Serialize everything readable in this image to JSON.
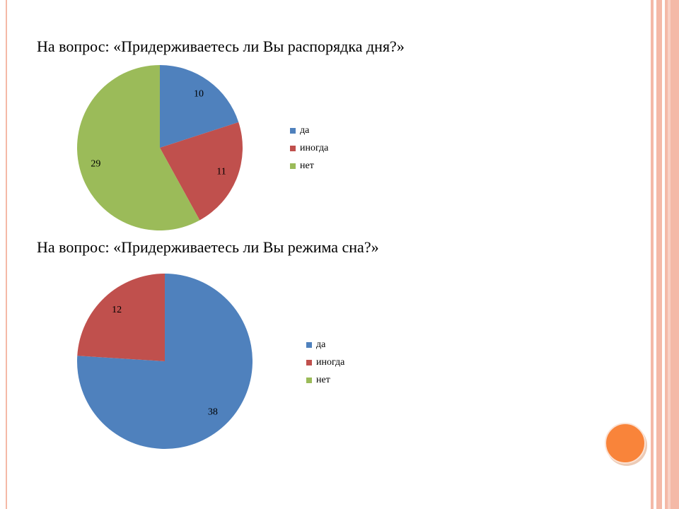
{
  "chart_data": [
    {
      "type": "pie",
      "title": "На вопрос: «Придерживаетесь ли Вы распорядка дня?»",
      "categories": [
        "да",
        "иногда",
        "нет"
      ],
      "values": [
        10,
        11,
        29
      ],
      "colors": [
        "#4f81bd",
        "#c0504d",
        "#9bbb59"
      ],
      "legend": "right"
    },
    {
      "type": "pie",
      "title": "На вопрос: «Придерживаетесь ли Вы режима сна?»",
      "categories": [
        "да",
        "иногда",
        "нет"
      ],
      "values": [
        38,
        12,
        0
      ],
      "colors": [
        "#4f81bd",
        "#c0504d",
        "#9bbb59"
      ],
      "legend": "right"
    }
  ]
}
